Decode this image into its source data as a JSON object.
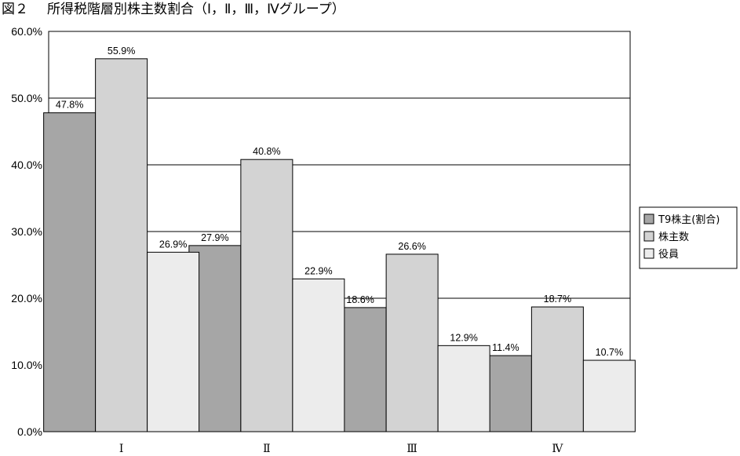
{
  "figure": {
    "number": "図２",
    "title": "所得税階層別株主数割合（Ⅰ，Ⅱ，Ⅲ，Ⅳグループ）"
  },
  "chart_data": {
    "type": "bar",
    "categories": [
      "Ⅰ",
      "Ⅱ",
      "Ⅲ",
      "Ⅳ"
    ],
    "series": [
      {
        "name": "T9株主(割合)",
        "values": [
          47.8,
          27.9,
          18.6,
          11.4
        ],
        "color": "#a6a6a6"
      },
      {
        "name": "株主数",
        "values": [
          55.9,
          40.8,
          26.6,
          18.7
        ],
        "color": "#d3d3d3"
      },
      {
        "name": "役員",
        "values": [
          26.9,
          22.9,
          12.9,
          10.7
        ],
        "color": "#ececec"
      }
    ],
    "value_labels": [
      [
        "47.8%",
        "27.9%",
        "18.6%",
        "11.4%"
      ],
      [
        "55.9%",
        "40.8%",
        "26.6%",
        "18.7%"
      ],
      [
        "26.9%",
        "22.9%",
        "12.9%",
        "10.7%"
      ]
    ],
    "y_ticks": [
      0,
      10,
      20,
      30,
      40,
      50,
      60
    ],
    "y_tick_labels": [
      "0.0%",
      "10.0%",
      "20.0%",
      "30.0%",
      "40.0%",
      "50.0%",
      "60.0%"
    ],
    "ylim": [
      0,
      60
    ],
    "grid": true,
    "legend_position": "right",
    "xlabel": "",
    "ylabel": ""
  }
}
